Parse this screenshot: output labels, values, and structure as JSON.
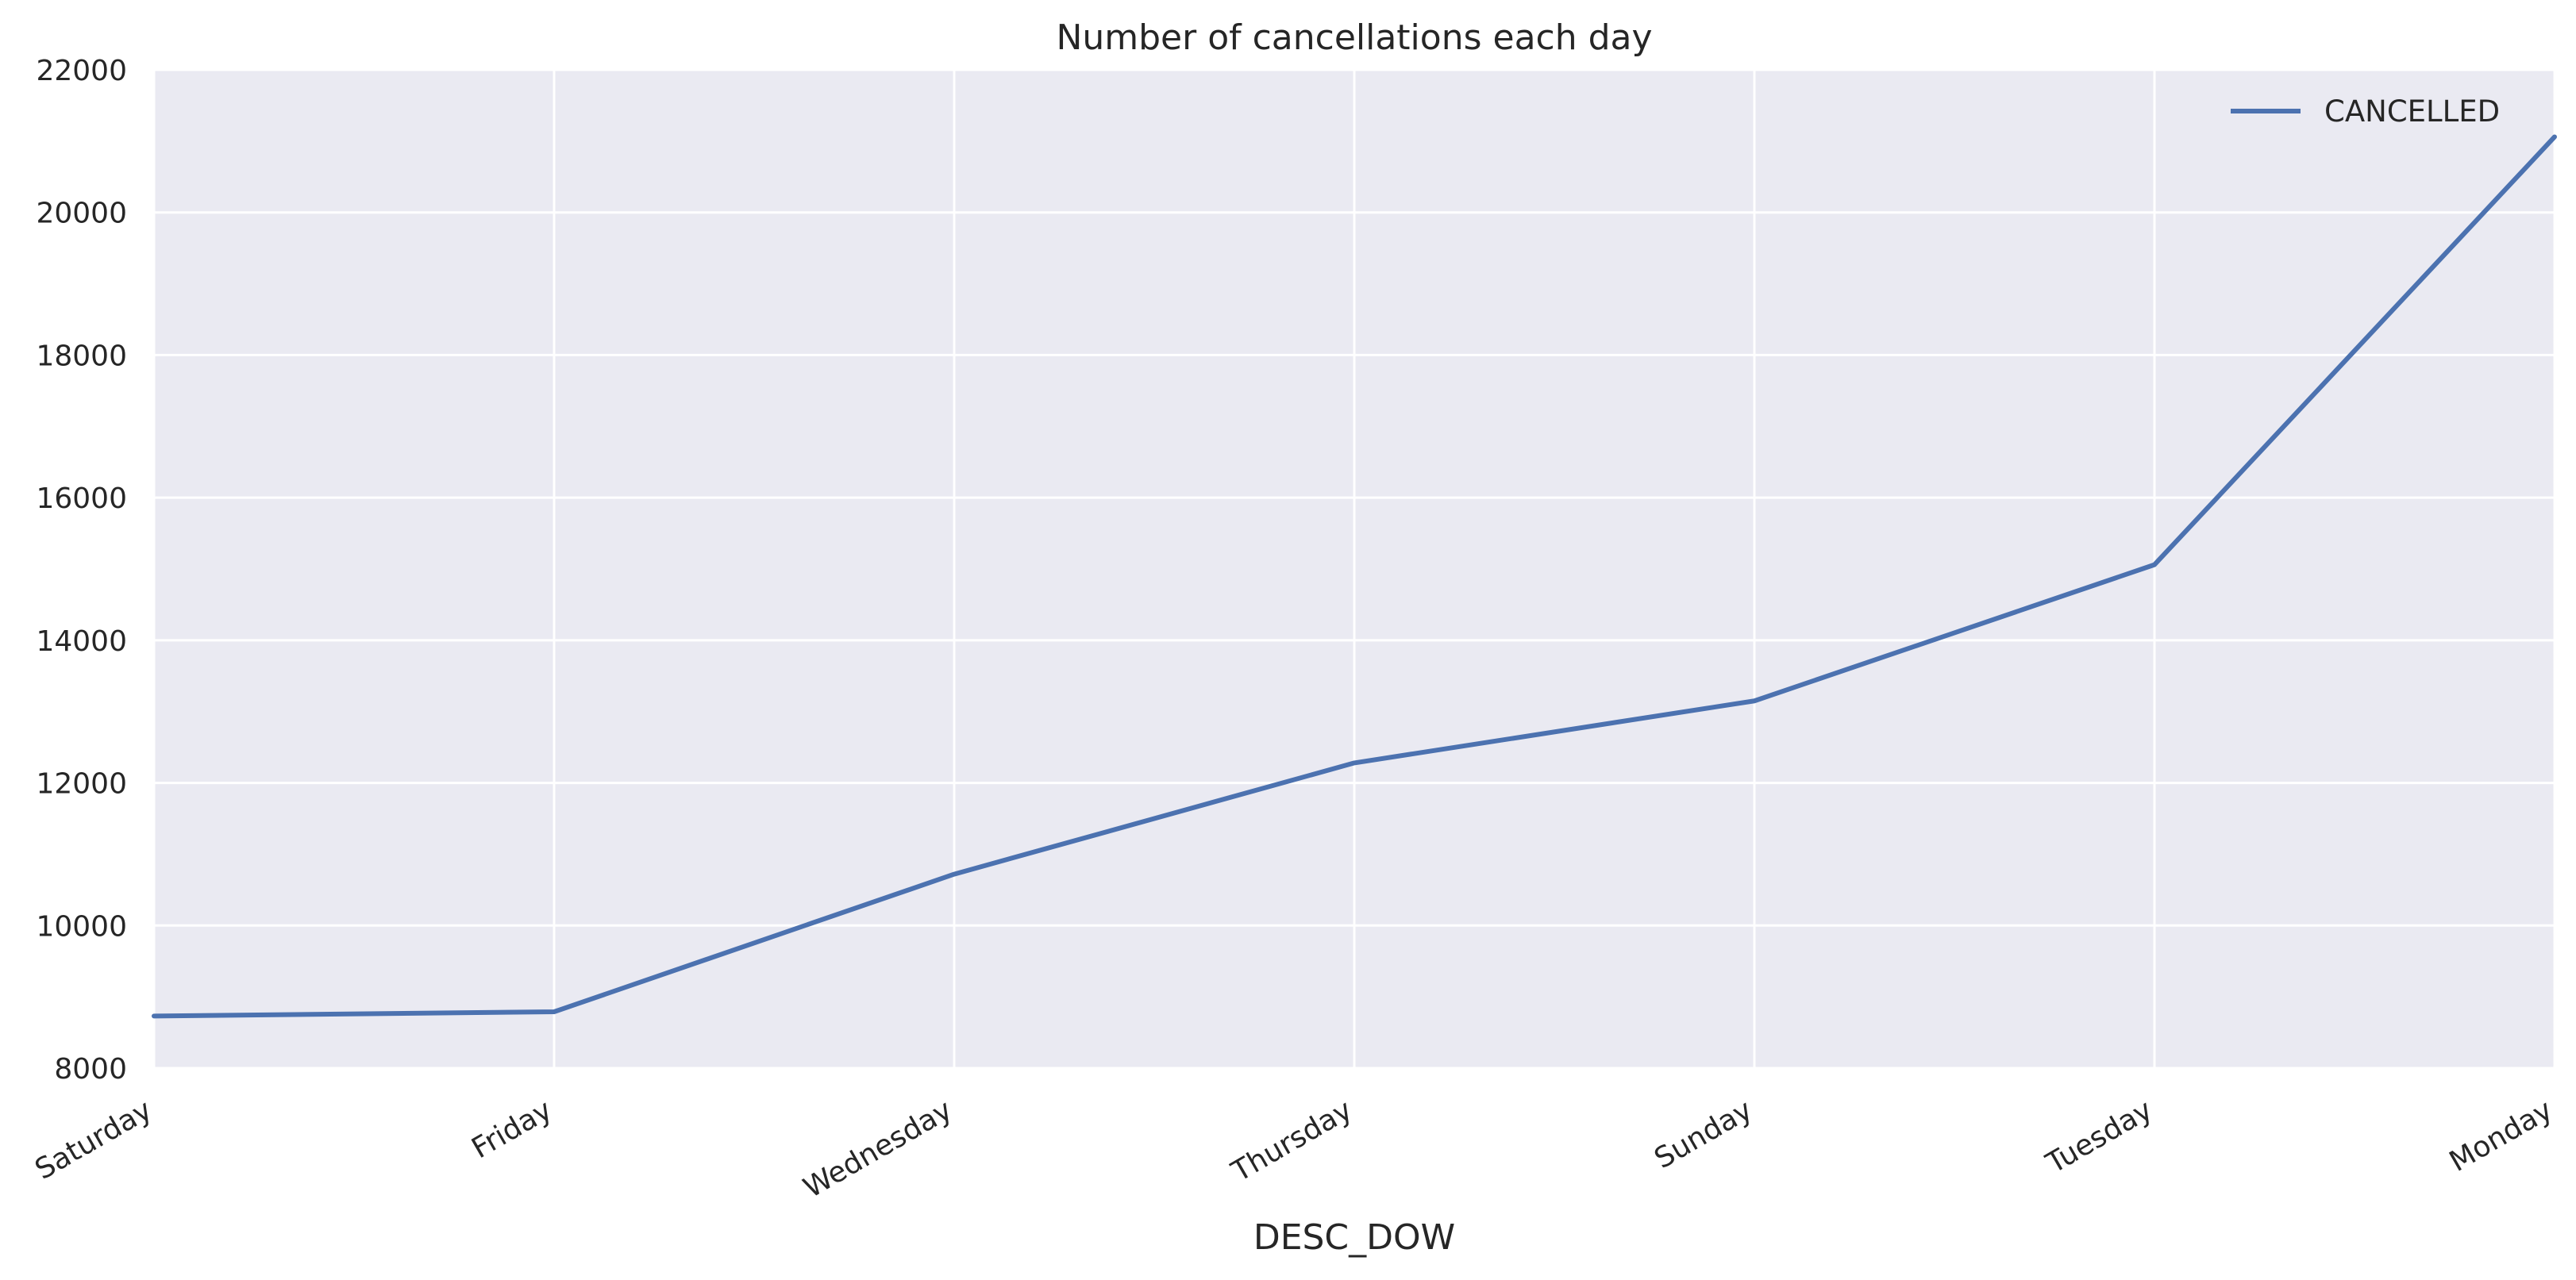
{
  "chart_data": {
    "type": "line",
    "title": "Number of cancellations each day",
    "xlabel": "DESC_DOW",
    "ylabel": "",
    "categories": [
      "Saturday",
      "Friday",
      "Wednesday",
      "Thursday",
      "Sunday",
      "Tuesday",
      "Monday"
    ],
    "series": [
      {
        "name": "CANCELLED",
        "values": [
          8730,
          8790,
          10720,
          12280,
          13150,
          15060,
          21060
        ],
        "color": "#4c72b0"
      }
    ],
    "ylim": [
      8000,
      22000
    ],
    "yticks": [
      "8000",
      "10000",
      "12000",
      "14000",
      "16000",
      "18000",
      "20000",
      "22000"
    ],
    "grid": true,
    "legend_position": "top-right",
    "background_color": "#eaeaf2"
  }
}
